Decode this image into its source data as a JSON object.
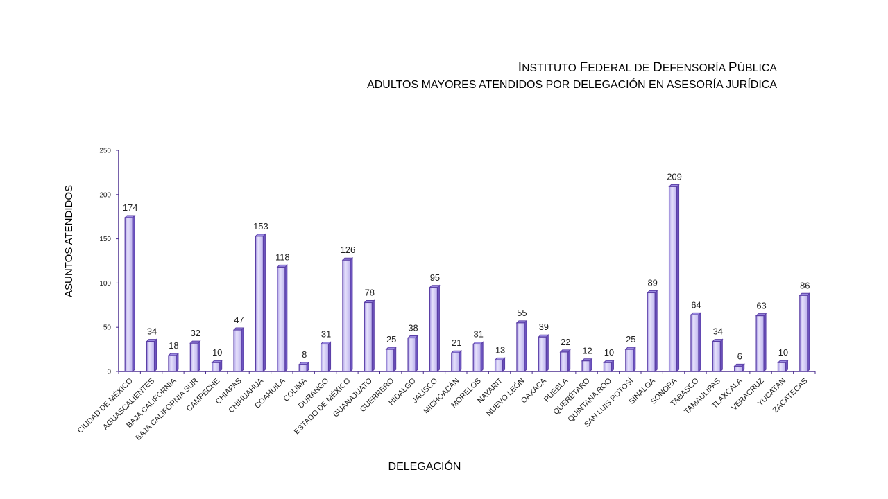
{
  "header": {
    "title_caps": [
      "I",
      "F",
      "D",
      "P"
    ],
    "title_rest": [
      "NSTITUTO ",
      "EDERAL DE ",
      "EFENSORÍA ",
      "ÚBLICA"
    ],
    "subtitle": "ADULTOS MAYORES ATENDIDOS POR DELEGACIÓN EN ASESORÍA JURÍDICA"
  },
  "chart_data": {
    "type": "bar",
    "title": "INSTITUTO FEDERAL DE DEFENSORÍA PÚBLICA",
    "subtitle": "ADULTOS MAYORES ATENDIDOS POR DELEGACIÓN EN ASESORÍA JURÍDICA",
    "xlabel": "DELEGACIÓN",
    "ylabel": "ASUNTOS ATENDIDOS",
    "ylim": [
      0,
      250
    ],
    "yticks": [
      0,
      50,
      100,
      150,
      200,
      250
    ],
    "grid": false,
    "legend": "none",
    "bar_color": "#c9c3f2",
    "bar_edge_color": "#5b3fa6",
    "categories": [
      "CIUDAD DE MÉXICO",
      "AGUASCALIENTES",
      "BAJA CALIFORNIA",
      "BAJA CALIFORNIA SUR",
      "CAMPECHE",
      "CHIAPAS",
      "CHIHUAHUA",
      "COAHUILA",
      "COLIMA",
      "DURANGO",
      "ESTADO DE MÉXICO",
      "GUANAJUATO",
      "GUERRERO",
      "HIDALGO",
      "JALISCO",
      "MICHOACÁN",
      "MORELOS",
      "NAYARIT",
      "NUEVO LEÓN",
      "OAXACA",
      "PUEBLA",
      "QUERÉTARO",
      "QUINTANA ROO",
      "SAN LUIS POTOSÍ",
      "SINALOA",
      "SONORA",
      "TABASCO",
      "TAMAULIPAS",
      "TLAXCALA",
      "VERACRUZ",
      "YUCATÁN",
      "ZACATECAS"
    ],
    "values": [
      174,
      34,
      18,
      32,
      10,
      47,
      153,
      118,
      8,
      31,
      126,
      78,
      25,
      38,
      95,
      21,
      31,
      13,
      55,
      39,
      22,
      12,
      10,
      25,
      89,
      209,
      64,
      34,
      6,
      63,
      10,
      86
    ]
  }
}
